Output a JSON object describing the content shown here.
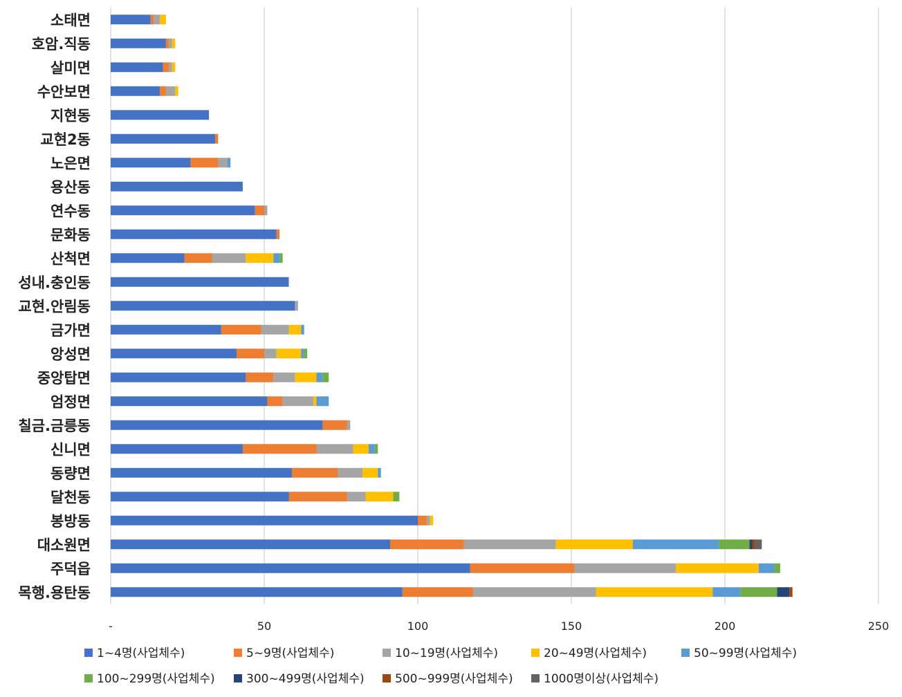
{
  "chart_data": {
    "type": "bar",
    "orientation": "horizontal",
    "stacked": true,
    "title": "",
    "xlabel": "",
    "ylabel": "",
    "xlim": [
      0,
      250
    ],
    "x_ticks": [
      "-",
      "50",
      "100",
      "150",
      "200",
      "250"
    ],
    "x_tick_values": [
      0,
      50,
      100,
      150,
      200,
      250
    ],
    "grid": true,
    "legend_position": "bottom",
    "categories": [
      "소태면",
      "호암.직동",
      "살미면",
      "수안보면",
      "지현동",
      "교현2동",
      "노은면",
      "용산동",
      "연수동",
      "문화동",
      "산척면",
      "성내.충인동",
      "교현.안림동",
      "금가면",
      "앙성면",
      "중앙탑면",
      "엄정면",
      "칠금.금릉동",
      "신니면",
      "동량면",
      "달천동",
      "봉방동",
      "대소원면",
      "주덕읍",
      "목행.용탄동"
    ],
    "series": [
      {
        "name": "1~4명(사업체수)",
        "color": "#4472C4",
        "values": [
          13,
          18,
          17,
          16,
          32,
          34,
          26,
          43,
          47,
          54,
          24,
          58,
          60,
          36,
          41,
          44,
          51,
          69,
          43,
          59,
          58,
          100,
          91,
          117,
          95
        ]
      },
      {
        "name": "5~9명(사업체수)",
        "color": "#ED7D31",
        "values": [
          1,
          1,
          2,
          2,
          0,
          1,
          9,
          0,
          3,
          1,
          9,
          0,
          0,
          13,
          9,
          9,
          5,
          8,
          24,
          15,
          19,
          3,
          24,
          34,
          23
        ]
      },
      {
        "name": "10~19명(사업체수)",
        "color": "#A5A5A5",
        "values": [
          2,
          1,
          1,
          3,
          0,
          0,
          3,
          0,
          1,
          0,
          11,
          0,
          1,
          9,
          4,
          7,
          10,
          1,
          12,
          8,
          6,
          1,
          30,
          33,
          40
        ]
      },
      {
        "name": "20~49명(사업체수)",
        "color": "#FFC000",
        "values": [
          2,
          1,
          1,
          1,
          0,
          0,
          0,
          0,
          0,
          0,
          9,
          0,
          0,
          4,
          8,
          7,
          1,
          0,
          5,
          5,
          9,
          1,
          25,
          27,
          38
        ]
      },
      {
        "name": "50~99명(사업체수)",
        "color": "#5B9BD5",
        "values": [
          0,
          0,
          0,
          0,
          0,
          0,
          1,
          0,
          0,
          0,
          2,
          0,
          0,
          1,
          1,
          2,
          4,
          0,
          2,
          1,
          0,
          0,
          28,
          5,
          9
        ]
      },
      {
        "name": "100~299명(사업체수)",
        "color": "#70AD47",
        "values": [
          0,
          0,
          0,
          0,
          0,
          0,
          0,
          0,
          0,
          0,
          1,
          0,
          0,
          0,
          1,
          2,
          0,
          0,
          1,
          0,
          2,
          0,
          10,
          2,
          12
        ]
      },
      {
        "name": "300~499명(사업체수)",
        "color": "#264478",
        "values": [
          0,
          0,
          0,
          0,
          0,
          0,
          0,
          0,
          0,
          0,
          0,
          0,
          0,
          0,
          0,
          0,
          0,
          0,
          0,
          0,
          0,
          0,
          1,
          0,
          4
        ]
      },
      {
        "name": "500~999명(사업체수)",
        "color": "#9E480E",
        "values": [
          0,
          0,
          0,
          0,
          0,
          0,
          0,
          0,
          0,
          0,
          0,
          0,
          0,
          0,
          0,
          0,
          0,
          0,
          0,
          0,
          0,
          0,
          1,
          0,
          1
        ]
      },
      {
        "name": "1000명이상(사업체수)",
        "color": "#636363",
        "values": [
          0,
          0,
          0,
          0,
          0,
          0,
          0,
          0,
          0,
          0,
          0,
          0,
          0,
          0,
          0,
          0,
          0,
          0,
          0,
          0,
          0,
          0,
          2,
          0,
          0
        ]
      }
    ]
  }
}
